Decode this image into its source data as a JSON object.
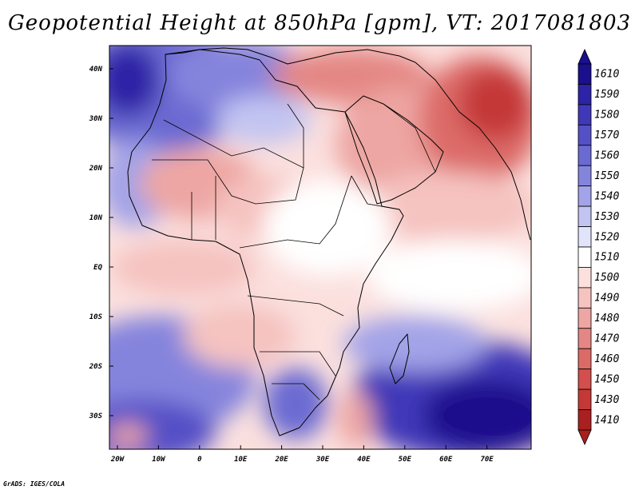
{
  "title": "Geopotential Height at 850hPa [gpm], VT: 2017081803",
  "credit": "GrADS: IGES/COLA",
  "map": {
    "region": "Africa and Middle East",
    "lon_range": [
      -22,
      80
    ],
    "lat_range": [
      -37,
      45
    ],
    "y_axis_labels": [
      "40N",
      "30N",
      "20N",
      "10N",
      "EQ",
      "10S",
      "20S",
      "30S"
    ],
    "x_axis_labels": [
      "20W",
      "10W",
      "0",
      "10E",
      "20E",
      "30E",
      "40E",
      "50E",
      "60E",
      "70E"
    ]
  },
  "colorbar": {
    "levels": [
      "1610",
      "1590",
      "1580",
      "1570",
      "1560",
      "1550",
      "1540",
      "1530",
      "1520",
      "1510",
      "1500",
      "1490",
      "1480",
      "1470",
      "1460",
      "1450",
      "1430",
      "1410"
    ],
    "colors": [
      "#1a0f8c",
      "#2d23a6",
      "#3f38b8",
      "#5550c6",
      "#6b6ad2",
      "#8584dd",
      "#a2a3e8",
      "#c2c4f1",
      "#e2e4f9",
      "#ffffff",
      "#fbe0de",
      "#f5c3c0",
      "#eda6a3",
      "#e48784",
      "#dc6a67",
      "#d24f4d",
      "#c43937",
      "#a8201f"
    ]
  }
}
